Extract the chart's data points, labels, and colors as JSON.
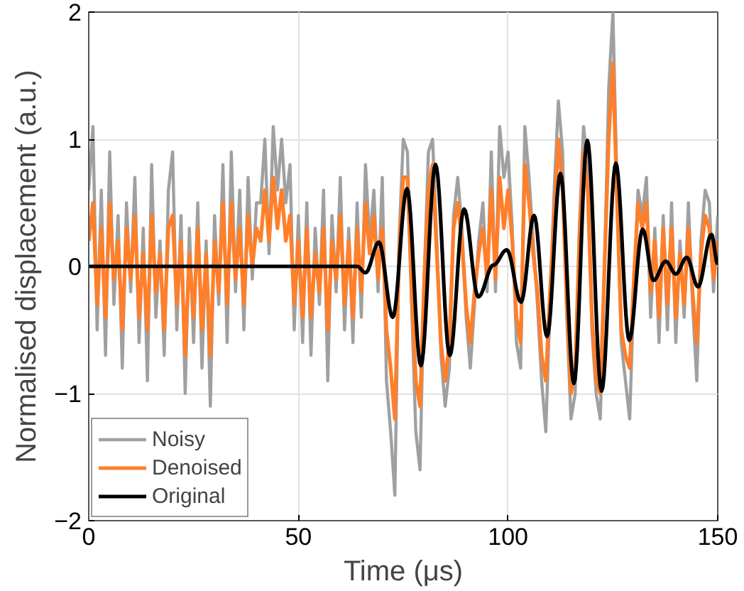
{
  "chart_data": {
    "type": "line",
    "xlabel": "Time (μs)",
    "ylabel": "Normalised displacement (a.u.)",
    "xlim": [
      0,
      150
    ],
    "ylim": [
      -2,
      2
    ],
    "xticks": [
      0,
      50,
      100,
      150
    ],
    "yticks": [
      -2,
      -1,
      0,
      1,
      2
    ],
    "grid": true,
    "legend": "bottom left",
    "line_style": "solid",
    "x": [
      0,
      1,
      2,
      3,
      4,
      5,
      6,
      7,
      8,
      9,
      10,
      11,
      12,
      13,
      14,
      15,
      16,
      17,
      18,
      19,
      20,
      21,
      22,
      23,
      24,
      25,
      26,
      27,
      28,
      29,
      30,
      31,
      32,
      33,
      34,
      35,
      36,
      37,
      38,
      39,
      40,
      41,
      42,
      43,
      44,
      45,
      46,
      47,
      48,
      49,
      50,
      51,
      52,
      53,
      54,
      55,
      56,
      57,
      58,
      59,
      60,
      61,
      62,
      63,
      64,
      65,
      66,
      67,
      68,
      69,
      70,
      71,
      72,
      73,
      74,
      75,
      76,
      77,
      78,
      79,
      80,
      81,
      82,
      83,
      84,
      85,
      86,
      87,
      88,
      89,
      90,
      91,
      92,
      93,
      94,
      95,
      96,
      97,
      98,
      99,
      100,
      101,
      102,
      103,
      104,
      105,
      106,
      107,
      108,
      109,
      110,
      111,
      112,
      113,
      114,
      115,
      116,
      117,
      118,
      119,
      120,
      121,
      122,
      123,
      124,
      125,
      126,
      127,
      128,
      129,
      130,
      131,
      132,
      133,
      134,
      135,
      136,
      137,
      138,
      139,
      140,
      141,
      142,
      143,
      144,
      145,
      146,
      147,
      148,
      149,
      150
    ],
    "series": [
      {
        "name": "Noisy",
        "color": "#a0a0a0",
        "values": [
          0.6,
          1.1,
          -0.5,
          0.6,
          -0.7,
          0.9,
          -0.3,
          0.4,
          -0.8,
          0.5,
          -0.2,
          0.7,
          -0.6,
          0.3,
          -0.9,
          0.8,
          -0.4,
          0.2,
          -0.7,
          0.6,
          0.9,
          -0.5,
          0.4,
          -1.0,
          0.3,
          -0.6,
          0.5,
          -0.8,
          0.2,
          -1.1,
          0.4,
          -0.3,
          0.8,
          -0.6,
          0.9,
          -0.2,
          0.6,
          -0.5,
          0.7,
          -0.1,
          0.5,
          0.5,
          1.0,
          0.1,
          1.1,
          0.6,
          1.0,
          0.5,
          0.8,
          -0.5,
          0.4,
          -0.6,
          0.5,
          -0.7,
          0.3,
          -0.3,
          0.6,
          -0.9,
          0.4,
          -0.2,
          0.7,
          -0.5,
          0.3,
          -0.6,
          0.5,
          -0.4,
          0.8,
          0.2,
          0.6,
          -0.2,
          0.7,
          -0.9,
          -1.3,
          -1.8,
          0.2,
          1.0,
          0.9,
          -0.3,
          -1.3,
          -1.6,
          -0.1,
          0.9,
          1.0,
          0.2,
          -0.7,
          -1.1,
          -0.8,
          0.4,
          0.7,
          0.3,
          -0.4,
          -0.8,
          -0.3,
          0.2,
          0.5,
          -0.2,
          0.9,
          -0.2,
          1.1,
          0.7,
          0.9,
          0.3,
          -0.6,
          -0.8,
          1.1,
          0.7,
          0.2,
          -0.3,
          -0.9,
          -1.3,
          -0.3,
          0.6,
          1.3,
          0.9,
          -0.4,
          -1.2,
          -1.0,
          0.3,
          1.1,
          0.8,
          -0.5,
          -1.0,
          -1.2,
          0.0,
          1.4,
          2.0,
          0.6,
          -0.6,
          -0.9,
          -1.2,
          -0.2,
          0.6,
          0.4,
          0.7,
          -0.4,
          0.3,
          -0.6,
          0.4,
          -0.5,
          0.5,
          -0.6,
          0.2,
          -0.4,
          0.5,
          -0.3,
          -0.9,
          0.2,
          0.6,
          0.5,
          -0.2,
          0.4
        ]
      },
      {
        "name": "Denoised",
        "color": "#ff7f2a",
        "values": [
          0.2,
          0.5,
          -0.3,
          0.3,
          -0.4,
          0.5,
          -0.1,
          0.2,
          -0.5,
          0.3,
          -0.1,
          0.4,
          -0.4,
          0.1,
          -0.5,
          0.4,
          -0.2,
          0.1,
          -0.5,
          0.3,
          0.4,
          -0.3,
          0.2,
          -0.7,
          0.1,
          -0.4,
          0.3,
          -0.5,
          0.1,
          -0.7,
          0.2,
          -0.2,
          0.5,
          -0.3,
          0.5,
          -0.1,
          0.3,
          -0.3,
          0.4,
          0.0,
          0.3,
          0.2,
          0.6,
          0.2,
          0.7,
          0.3,
          0.6,
          0.2,
          0.4,
          -0.3,
          0.2,
          -0.4,
          0.3,
          -0.4,
          0.1,
          -0.2,
          0.3,
          -0.5,
          0.2,
          -0.1,
          0.4,
          -0.3,
          0.2,
          -0.4,
          0.3,
          -0.2,
          0.5,
          0.1,
          0.4,
          -0.1,
          0.3,
          -0.5,
          -0.8,
          -1.2,
          0.1,
          0.7,
          0.7,
          -0.2,
          -0.9,
          -1.1,
          -0.1,
          0.6,
          0.8,
          0.1,
          -0.6,
          -0.9,
          -0.6,
          0.3,
          0.5,
          0.2,
          -0.3,
          -0.6,
          -0.2,
          0.1,
          0.3,
          -0.1,
          0.6,
          -0.1,
          0.7,
          0.3,
          0.6,
          0.2,
          -0.4,
          -0.6,
          0.8,
          0.5,
          0.1,
          -0.2,
          -0.7,
          -0.9,
          -0.2,
          0.4,
          1.0,
          0.6,
          -0.3,
          -1.0,
          -0.8,
          0.2,
          0.9,
          0.6,
          -0.4,
          -0.9,
          -1.0,
          0.0,
          1.0,
          1.6,
          0.5,
          -0.5,
          -0.7,
          -0.8,
          -0.1,
          0.5,
          0.3,
          0.5,
          -0.2,
          0.2,
          -0.4,
          0.3,
          -0.3,
          0.3,
          -0.4,
          0.1,
          -0.3,
          0.3,
          -0.2,
          -0.6,
          0.1,
          0.4,
          0.3,
          -0.1,
          0.2
        ]
      },
      {
        "name": "Original",
        "color": "#000000",
        "x": [
          0,
          64,
          66,
          69.2,
          72.5,
          75.9,
          79.2,
          82.7,
          86.1,
          89.5,
          92.9,
          96.5,
          99.7,
          103.1,
          106.2,
          109.3,
          112.5,
          115.7,
          118.9,
          122.3,
          125.7,
          128.9,
          132.1,
          134.7,
          137.6,
          140,
          142.6,
          145.3,
          148.5,
          150
        ],
        "values": [
          0,
          0,
          -0.05,
          0.19,
          -0.4,
          0.61,
          -0.78,
          0.8,
          -0.7,
          0.45,
          -0.24,
          0.01,
          0.13,
          -0.28,
          0.4,
          -0.55,
          0.73,
          -0.92,
          0.99,
          -0.98,
          0.81,
          -0.58,
          0.29,
          -0.11,
          0.04,
          -0.06,
          0.07,
          -0.16,
          0.25,
          0.02
        ]
      }
    ]
  }
}
